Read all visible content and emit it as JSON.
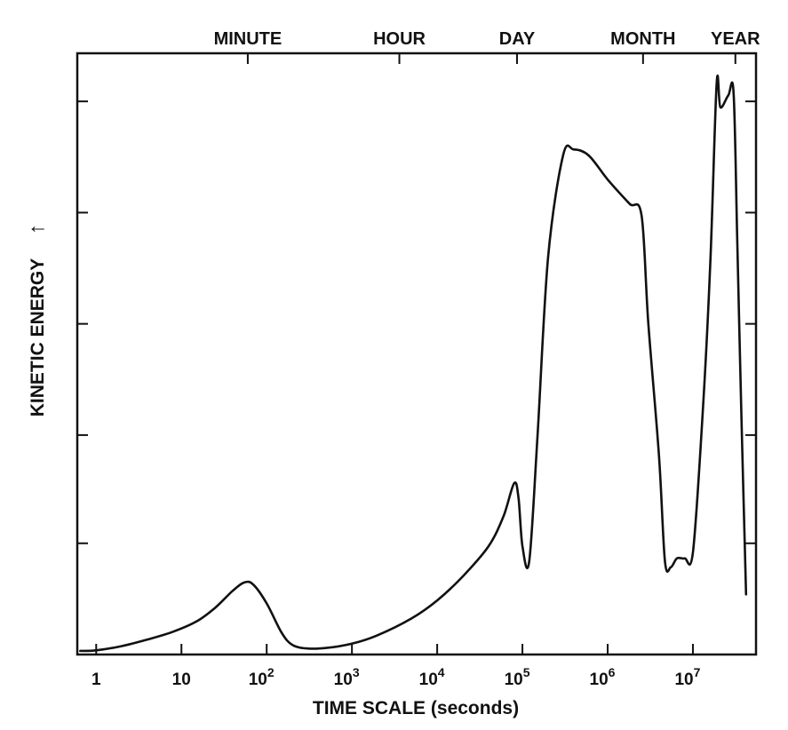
{
  "chart_data": {
    "type": "line",
    "xlabel": "TIME SCALE (seconds)",
    "ylabel": "KINETIC ENERGY",
    "ylabel_arrow": "↑",
    "x_scale": "log",
    "xlim": [
      0.6,
      55000000
    ],
    "ylim": [
      0,
      100
    ],
    "y_tick_marks": [
      18.5,
      36.5,
      55,
      73.5,
      92
    ],
    "grid": false,
    "legend": "none",
    "colors": {
      "line": "#111111",
      "axes": "#111111",
      "text": "#111111"
    },
    "x_ticks": [
      {
        "value": 1,
        "label": "1",
        "sup": ""
      },
      {
        "value": 10,
        "label": "10",
        "sup": ""
      },
      {
        "value": 100,
        "label": "10",
        "sup": "2"
      },
      {
        "value": 1000,
        "label": "10",
        "sup": "3"
      },
      {
        "value": 10000,
        "label": "10",
        "sup": "4"
      },
      {
        "value": 100000,
        "label": "10",
        "sup": "5"
      },
      {
        "value": 1000000,
        "label": "10",
        "sup": "6"
      },
      {
        "value": 10000000,
        "label": "10",
        "sup": "7"
      }
    ],
    "top_ticks": [
      {
        "label": "MINUTE",
        "value": 60
      },
      {
        "label": "HOUR",
        "value": 3600
      },
      {
        "label": "DAY",
        "value": 86400
      },
      {
        "label": "MONTH",
        "value": 2600000
      },
      {
        "label": "YEAR",
        "value": 31500000
      }
    ],
    "series": [
      {
        "points": [
          [
            0.65,
            0.6
          ],
          [
            1,
            0.7
          ],
          [
            2,
            1.4
          ],
          [
            4,
            2.5
          ],
          [
            8,
            3.8
          ],
          [
            15,
            5.5
          ],
          [
            25,
            7.8
          ],
          [
            40,
            10.6
          ],
          [
            55,
            12.0
          ],
          [
            70,
            11.6
          ],
          [
            100,
            8.5
          ],
          [
            150,
            3.6
          ],
          [
            200,
            1.6
          ],
          [
            300,
            1.0
          ],
          [
            500,
            1.1
          ],
          [
            1000,
            1.8
          ],
          [
            2000,
            3.2
          ],
          [
            5000,
            6.0
          ],
          [
            10000,
            9.0
          ],
          [
            20000,
            13.0
          ],
          [
            40000,
            18.0
          ],
          [
            60000,
            23.0
          ],
          [
            80000,
            28.5
          ],
          [
            90000,
            26.0
          ],
          [
            100000,
            18.0
          ],
          [
            120000,
            15.5
          ],
          [
            150000,
            36.0
          ],
          [
            200000,
            66.0
          ],
          [
            300000,
            83.0
          ],
          [
            400000,
            84.0
          ],
          [
            600000,
            83.0
          ],
          [
            1000000,
            79.0
          ],
          [
            1800000,
            75.0
          ],
          [
            2500000,
            73.0
          ],
          [
            3000000,
            55.0
          ],
          [
            4000000,
            33.0
          ],
          [
            4700000,
            15.5
          ],
          [
            5500000,
            14.5
          ],
          [
            6500000,
            16.0
          ],
          [
            8000000,
            16.0
          ],
          [
            10000000,
            17.0
          ],
          [
            13000000,
            40.0
          ],
          [
            16000000,
            65.0
          ],
          [
            19000000,
            95.0
          ],
          [
            21000000,
            91.0
          ],
          [
            26000000,
            93.0
          ],
          [
            30000000,
            93.5
          ],
          [
            33000000,
            70.0
          ],
          [
            37000000,
            40.0
          ],
          [
            42000000,
            10.0
          ]
        ]
      }
    ]
  }
}
